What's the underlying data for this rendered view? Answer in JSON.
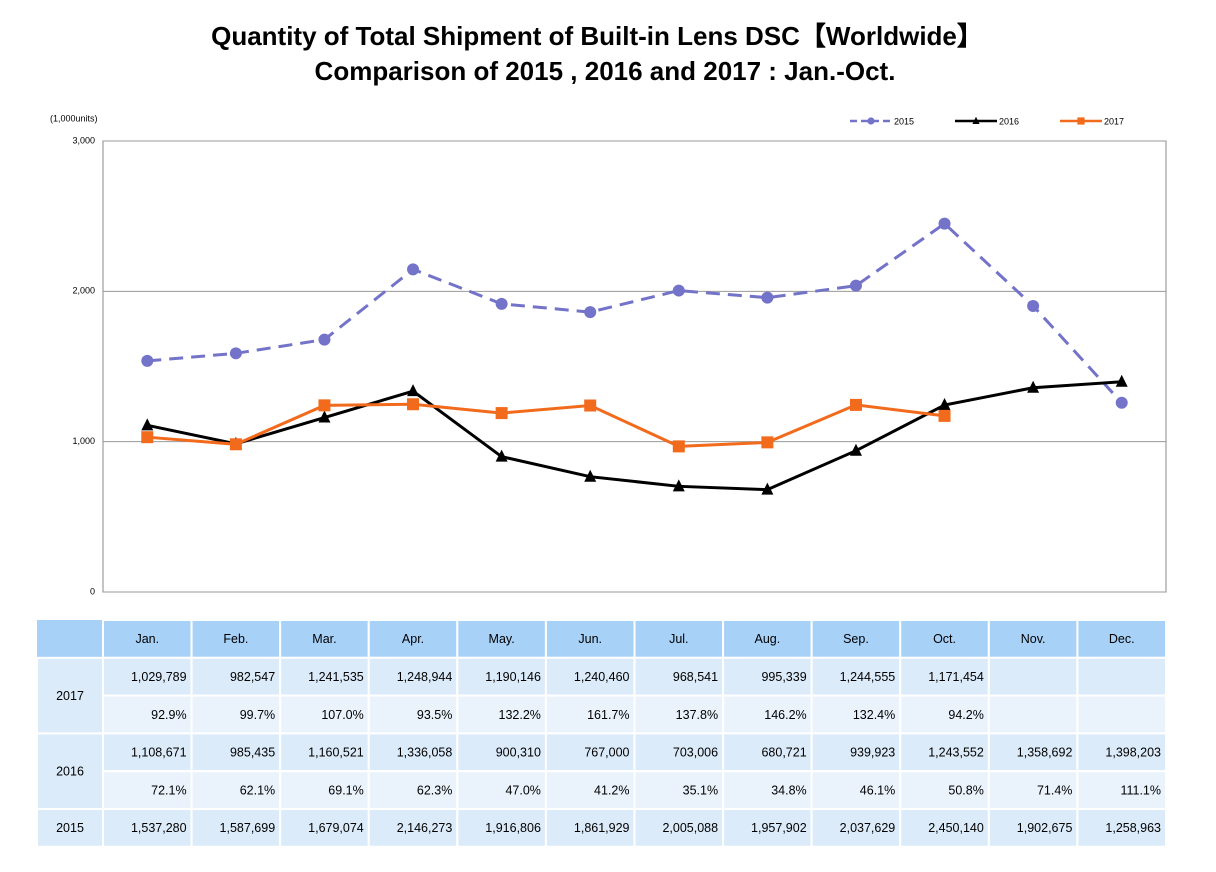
{
  "chart_data": {
    "type": "line",
    "title": "Quantity of Total Shipment of Built-in Lens DSC【Worldwide】",
    "subtitle": "Comparison of 2015 , 2016 and 2017 : Jan.-Oct.",
    "y_label": "(1,000units)",
    "categories": [
      "Jan.",
      "Feb.",
      "Mar.",
      "Apr.",
      "May.",
      "Jun.",
      "Jul.",
      "Aug.",
      "Sep.",
      "Oct.",
      "Nov.",
      "Dec."
    ],
    "ylim": [
      0,
      3000
    ],
    "yticks": [
      0,
      {
        "value": 1000,
        "label": "1,000"
      },
      {
        "value": 2000,
        "label": "2,000"
      },
      {
        "value": 3000,
        "label": "3,000"
      }
    ],
    "grid": true,
    "legend": "top-right",
    "series": [
      {
        "name": "2015",
        "color": "#7373c9",
        "dash": true,
        "marker": "circle",
        "values": [
          1537.28,
          1587.699,
          1679.074,
          2146.273,
          1916.806,
          1861.929,
          2005.088,
          1957.902,
          2037.629,
          2450.14,
          1902.675,
          1258.963
        ],
        "value_labels": [
          "1,537,280",
          "1,587,699",
          "1,679,074",
          "2,146,273",
          "1,916,806",
          "1,861,929",
          "2,005,088",
          "1,957,902",
          "2,037,629",
          "2,450,140",
          "1,902,675",
          "1,258,963"
        ],
        "ratio_labels": null
      },
      {
        "name": "2016",
        "color": "#000000",
        "dash": false,
        "marker": "triangle",
        "values": [
          1108.671,
          985.435,
          1160.521,
          1336.058,
          900.31,
          767.0,
          703.006,
          680.721,
          939.923,
          1243.552,
          1358.692,
          1398.203
        ],
        "value_labels": [
          "1,108,671",
          "985,435",
          "1,160,521",
          "1,336,058",
          "900,310",
          "767,000",
          "703,006",
          "680,721",
          "939,923",
          "1,243,552",
          "1,358,692",
          "1,398,203"
        ],
        "ratio_labels": [
          "72.1%",
          "62.1%",
          "69.1%",
          "62.3%",
          "47.0%",
          "41.2%",
          "35.1%",
          "34.8%",
          "46.1%",
          "50.8%",
          "71.4%",
          "111.1%"
        ]
      },
      {
        "name": "2017",
        "color": "#f26b1d",
        "dash": false,
        "marker": "square",
        "values": [
          1029.789,
          982.547,
          1241.535,
          1248.944,
          1190.146,
          1240.46,
          968.541,
          995.339,
          1244.555,
          1171.454,
          null,
          null
        ],
        "value_labels": [
          "1,029,789",
          "982,547",
          "1,241,535",
          "1,248,944",
          "1,190,146",
          "1,240,460",
          "968,541",
          "995,339",
          "1,244,555",
          "1,171,454",
          null,
          null
        ],
        "ratio_labels": [
          "92.9%",
          "99.7%",
          "107.0%",
          "93.5%",
          "132.2%",
          "161.7%",
          "137.8%",
          "146.2%",
          "132.4%",
          "94.2%",
          null,
          null
        ]
      }
    ]
  }
}
